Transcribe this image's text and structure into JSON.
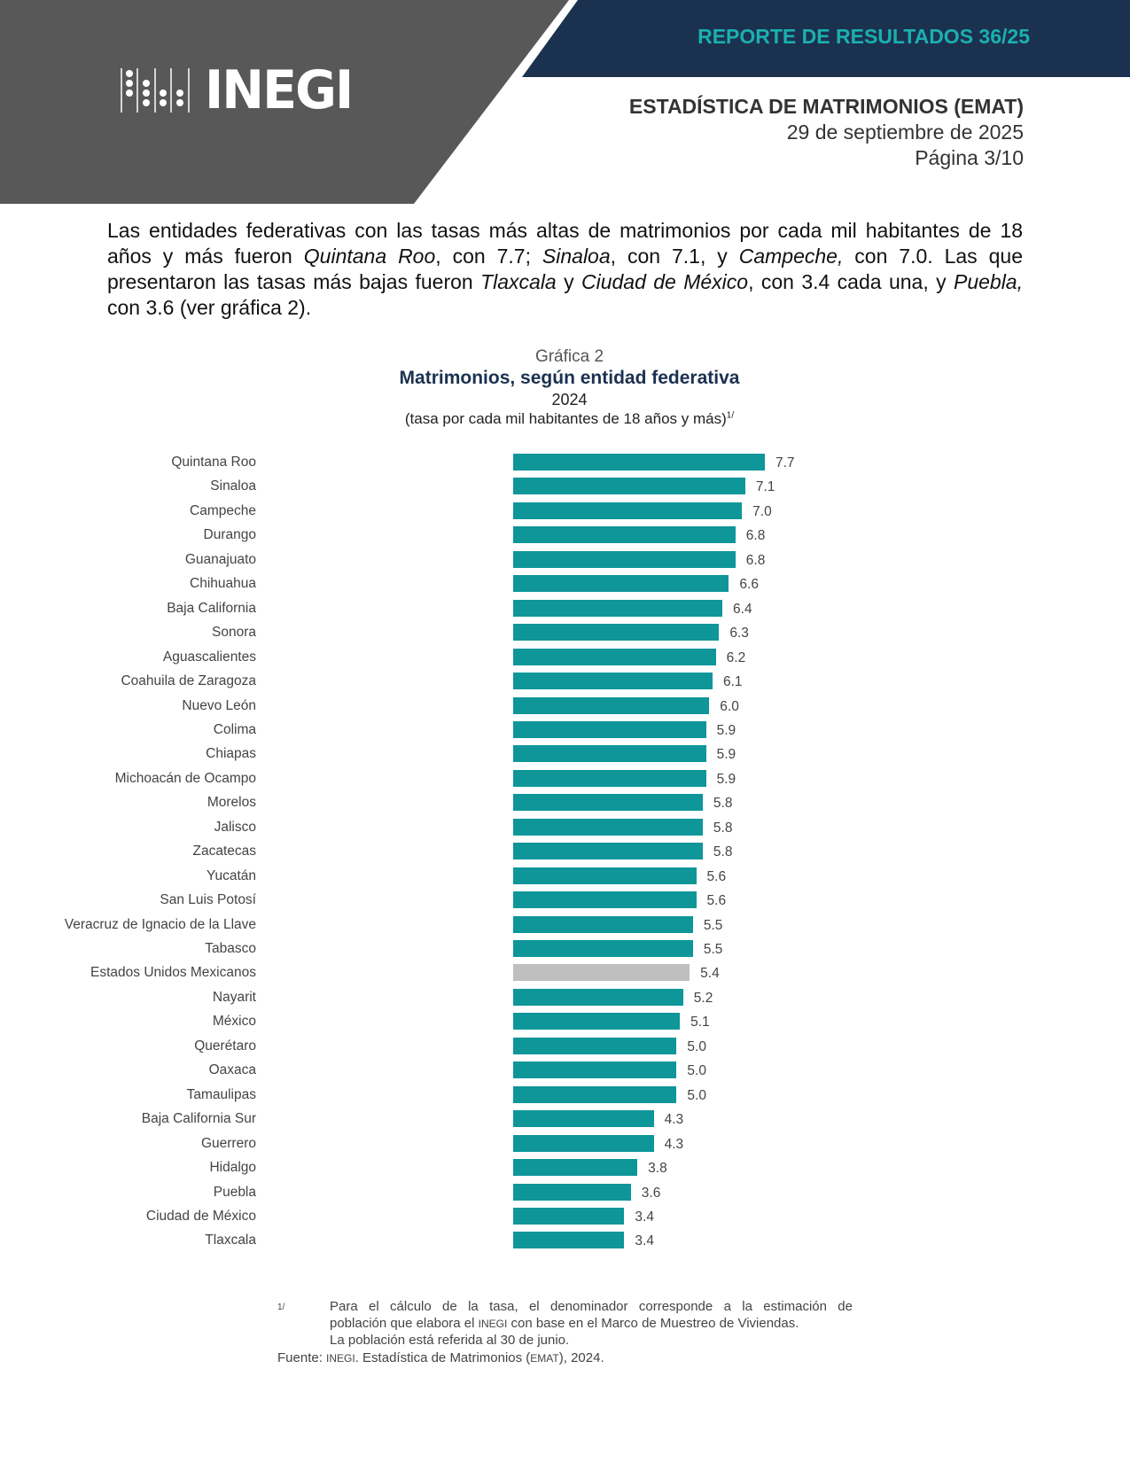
{
  "header": {
    "logo_text": "INEGI",
    "report_label": "REPORTE DE RESULTADOS 36/25",
    "title": "ESTADÍSTICA DE MATRIMONIOS (EMAT)",
    "date": "29 de septiembre de 2025",
    "page": "Página 3/10"
  },
  "paragraph": {
    "p1": "Las entidades federativas con las tasas más altas de matrimonios por cada mil habitantes de 18 años y más fueron ",
    "e1": "Quintana Roo",
    "p2": ", con 7.7; ",
    "e2": "Sinaloa",
    "p3": ", con 7.1, y ",
    "e3": "Campeche,",
    "p4": " con 7.0. Las que presentaron las tasas más bajas fueron ",
    "e4": "Tlaxcala",
    "p5": " y ",
    "e5": "Ciudad de México",
    "p6": ", con 3.4 cada una, y ",
    "e6": "Puebla,",
    "p7": " con 3.6 (ver gráfica 2)."
  },
  "colors": {
    "navy": "#1b3150",
    "teal_text": "#1ab0ae",
    "bar": "#0e9699",
    "national_bar": "#bfbfbf",
    "dark_gray": "#585858"
  },
  "chart_data": {
    "type": "bar",
    "orientation": "horizontal",
    "label": "Gráfica 2",
    "title": "Matrimonios, según entidad federativa",
    "subtitle": "2024",
    "unit": "(tasa por cada mil habitantes de 18 años y más)",
    "unit_note": "1/",
    "xlim": [
      0,
      7.7
    ],
    "highlight": "Estados Unidos Mexicanos",
    "categories": [
      "Quintana Roo",
      "Sinaloa",
      "Campeche",
      "Durango",
      "Guanajuato",
      "Chihuahua",
      "Baja California",
      "Sonora",
      "Aguascalientes",
      "Coahuila de Zaragoza",
      "Nuevo León",
      "Colima",
      "Chiapas",
      "Michoacán de Ocampo",
      "Morelos",
      "Jalisco",
      "Zacatecas",
      "Yucatán",
      "San Luis Potosí",
      "Veracruz de Ignacio de la Llave",
      "Tabasco",
      "Estados Unidos Mexicanos",
      "Nayarit",
      "México",
      "Querétaro",
      "Oaxaca",
      "Tamaulipas",
      "Baja California Sur",
      "Guerrero",
      "Hidalgo",
      "Puebla",
      "Ciudad de México",
      "Tlaxcala"
    ],
    "values": [
      7.7,
      7.1,
      7.0,
      6.8,
      6.8,
      6.6,
      6.4,
      6.3,
      6.2,
      6.1,
      6.0,
      5.9,
      5.9,
      5.9,
      5.8,
      5.8,
      5.8,
      5.6,
      5.6,
      5.5,
      5.5,
      5.4,
      5.2,
      5.1,
      5.0,
      5.0,
      5.0,
      4.3,
      4.3,
      3.8,
      3.6,
      3.4,
      3.4
    ]
  },
  "footnote": {
    "mark": "1/",
    "line1": "Para el cálculo de la tasa, el denominador corresponde a la estimación de",
    "line2a": "población que elabora el ",
    "line2b": "INEGI",
    "line2c": " con base en el Marco de Muestreo de Viviendas.",
    "line3": "La población está referida al 30 de junio.",
    "source_label": "Fuente:",
    "source_a": "INEGI",
    "source_b": ". Estadística de Matrimonios (",
    "source_c": "EMAT",
    "source_d": "), 2024."
  }
}
